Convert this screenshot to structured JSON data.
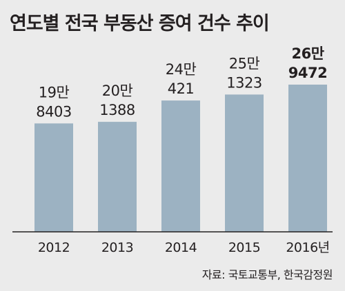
{
  "title": "연도별 전국 부동산 증여 건수 추이",
  "source": "자료: 국토교통부, 한국감정원",
  "colors": {
    "background": "#ebebeb",
    "bar": "#9cb2c2",
    "text": "#231f20",
    "axis": "#231f20"
  },
  "chart_data": {
    "type": "bar",
    "title": "연도별 전국 부동산 증여 건수 추이",
    "xlabel": "",
    "ylabel": "",
    "categories": [
      "2012",
      "2013",
      "2014",
      "2015",
      "2016년"
    ],
    "values": [
      198403,
      201388,
      240421,
      251323,
      269472
    ],
    "data_labels": [
      [
        "19만",
        "8403"
      ],
      [
        "20만",
        "1388"
      ],
      [
        "24만",
        "421"
      ],
      [
        "25만",
        "1323"
      ],
      [
        "26만",
        "9472"
      ]
    ],
    "highlight_index": 4,
    "ylim": [
      0,
      290000
    ],
    "grid": false,
    "legend": "none"
  }
}
